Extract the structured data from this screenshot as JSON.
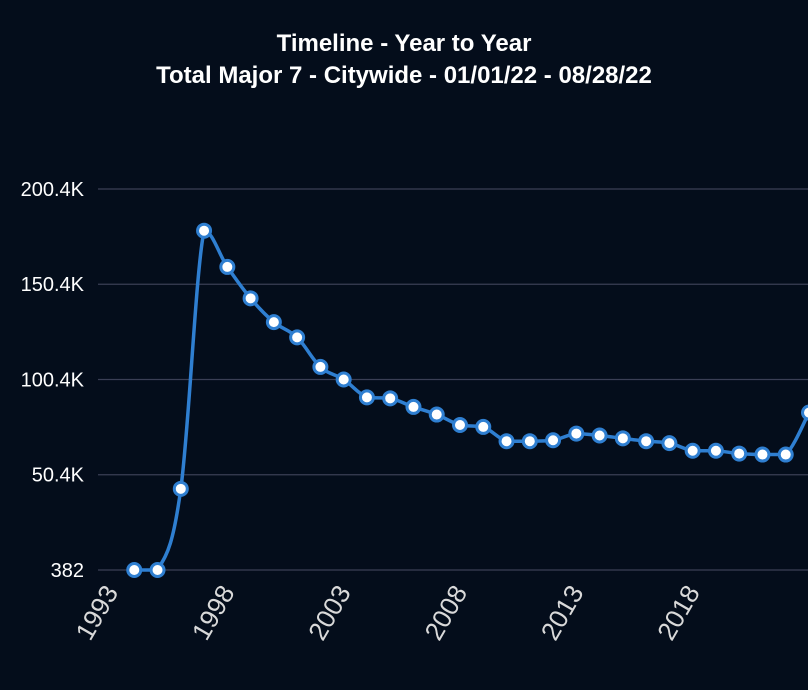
{
  "chart_data": {
    "type": "line",
    "title": "Timeline - Year to Year",
    "subtitle": "Total Major 7 - Citywide - 01/01/22 - 08/28/22",
    "xlabel": "",
    "ylabel": "",
    "x": [
      1994,
      1995,
      1996,
      1997,
      1998,
      1999,
      2000,
      2001,
      2002,
      2003,
      2004,
      2005,
      2006,
      2007,
      2008,
      2009,
      2010,
      2011,
      2012,
      2013,
      2014,
      2015,
      2016,
      2017,
      2018,
      2019,
      2020,
      2021,
      2022,
      2023
    ],
    "values": [
      382,
      382,
      43000,
      178500,
      159500,
      143000,
      130500,
      122500,
      107000,
      100400,
      91000,
      90500,
      86000,
      82000,
      76500,
      75500,
      68000,
      68000,
      68500,
      72000,
      71000,
      69500,
      68000,
      67000,
      63000,
      63000,
      61500,
      61000,
      61000,
      83000
    ],
    "y_ticks": [
      382,
      50400,
      100400,
      150400,
      200400
    ],
    "y_tick_labels": [
      "382",
      "50.4K",
      "100.4K",
      "150.4K",
      "200.4K"
    ],
    "x_ticks": [
      1993,
      1998,
      2003,
      2008,
      2013,
      2018
    ],
    "x_tick_labels": [
      "1993",
      "1998",
      "2003",
      "2008",
      "2013",
      "2018"
    ],
    "xlim": [
      1993,
      2023
    ],
    "ylim": [
      382,
      200400
    ],
    "grid": true,
    "line_color": "#2f7fd1",
    "marker_fill": "#ffffff",
    "grid_color": "#3a3f55",
    "background": "#040d1b"
  }
}
